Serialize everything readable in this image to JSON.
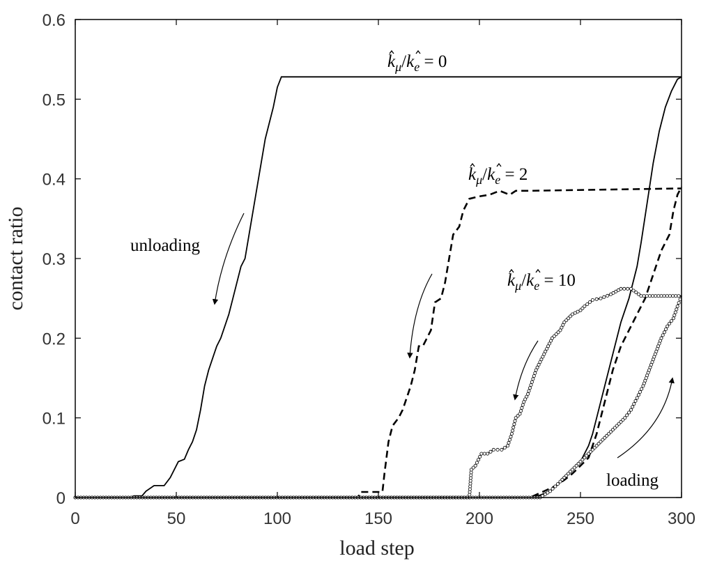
{
  "chart_data": {
    "type": "line",
    "xlabel": "load step",
    "ylabel": "contact ratio",
    "xlim": [
      0,
      300
    ],
    "ylim": [
      0,
      0.6
    ],
    "xticks": [
      0,
      50,
      100,
      150,
      200,
      250,
      300
    ],
    "yticks": [
      0,
      0.1,
      0.2,
      0.3,
      0.4,
      0.5,
      0.6
    ],
    "grid": false,
    "legend": "none",
    "series": [
      {
        "name": "k̂μ/k̂e = 0",
        "style": "solid",
        "color": "#000000",
        "label_parts": {
          "k1": "k",
          "s1": "μ",
          "slash": "/",
          "k2": "k",
          "s2": "e",
          "eq": " = ",
          "val": "0"
        },
        "unloading": [
          [
            0,
            0
          ],
          [
            27,
            0
          ],
          [
            29,
            0.002
          ],
          [
            33,
            0.002
          ],
          [
            35,
            0.008
          ],
          [
            39,
            0.015
          ],
          [
            44,
            0.015
          ],
          [
            47,
            0.025
          ],
          [
            51,
            0.045
          ],
          [
            54,
            0.048
          ],
          [
            56,
            0.06
          ],
          [
            58,
            0.07
          ],
          [
            60,
            0.085
          ],
          [
            62,
            0.11
          ],
          [
            64,
            0.14
          ],
          [
            66,
            0.16
          ],
          [
            68,
            0.175
          ],
          [
            70,
            0.19
          ],
          [
            72,
            0.2
          ],
          [
            74,
            0.215
          ],
          [
            76,
            0.23
          ],
          [
            78,
            0.25
          ],
          [
            80,
            0.27
          ],
          [
            82,
            0.29
          ],
          [
            84,
            0.3
          ],
          [
            86,
            0.33
          ],
          [
            88,
            0.36
          ],
          [
            90,
            0.39
          ],
          [
            92,
            0.42
          ],
          [
            94,
            0.45
          ],
          [
            96,
            0.47
          ],
          [
            98,
            0.49
          ],
          [
            100,
            0.515
          ],
          [
            102,
            0.528
          ],
          [
            300,
            0.528
          ]
        ],
        "loading": [
          [
            0,
            0
          ],
          [
            225,
            0
          ],
          [
            230,
            0.003
          ],
          [
            235,
            0.008
          ],
          [
            238,
            0.015
          ],
          [
            242,
            0.025
          ],
          [
            246,
            0.035
          ],
          [
            250,
            0.045
          ],
          [
            254,
            0.065
          ],
          [
            256,
            0.08
          ],
          [
            258,
            0.1
          ],
          [
            262,
            0.14
          ],
          [
            266,
            0.18
          ],
          [
            270,
            0.22
          ],
          [
            274,
            0.25
          ],
          [
            278,
            0.29
          ],
          [
            280,
            0.32
          ],
          [
            283,
            0.37
          ],
          [
            286,
            0.42
          ],
          [
            289,
            0.46
          ],
          [
            292,
            0.49
          ],
          [
            295,
            0.51
          ],
          [
            298,
            0.525
          ],
          [
            300,
            0.528
          ]
        ]
      },
      {
        "name": "k̂μ/k̂e = 2",
        "style": "dashed",
        "color": "#000000",
        "label_parts": {
          "k1": "k",
          "s1": "μ",
          "slash": "/",
          "k2": "k",
          "s2": "e",
          "eq": " = ",
          "val": "2"
        },
        "unloading": [
          [
            0,
            0
          ],
          [
            140,
            0
          ],
          [
            141,
            0.007
          ],
          [
            146,
            0.007
          ],
          [
            152,
            0.007
          ],
          [
            153,
            0.03
          ],
          [
            155,
            0.07
          ],
          [
            157,
            0.09
          ],
          [
            160,
            0.1
          ],
          [
            162,
            0.11
          ],
          [
            164,
            0.125
          ],
          [
            166,
            0.14
          ],
          [
            168,
            0.16
          ],
          [
            170,
            0.19
          ],
          [
            172,
            0.19
          ],
          [
            174,
            0.2
          ],
          [
            176,
            0.21
          ],
          [
            178,
            0.245
          ],
          [
            181,
            0.25
          ],
          [
            183,
            0.27
          ],
          [
            185,
            0.3
          ],
          [
            187,
            0.33
          ],
          [
            190,
            0.34
          ],
          [
            192,
            0.36
          ],
          [
            195,
            0.375
          ],
          [
            200,
            0.378
          ],
          [
            205,
            0.38
          ],
          [
            210,
            0.385
          ],
          [
            215,
            0.38
          ],
          [
            218,
            0.385
          ],
          [
            225,
            0.385
          ],
          [
            300,
            0.388
          ]
        ],
        "loading": [
          [
            0,
            0
          ],
          [
            225,
            0
          ],
          [
            232,
            0.008
          ],
          [
            238,
            0.015
          ],
          [
            242,
            0.022
          ],
          [
            246,
            0.03
          ],
          [
            250,
            0.04
          ],
          [
            254,
            0.05
          ],
          [
            258,
            0.08
          ],
          [
            262,
            0.12
          ],
          [
            266,
            0.16
          ],
          [
            270,
            0.19
          ],
          [
            274,
            0.21
          ],
          [
            278,
            0.23
          ],
          [
            282,
            0.25
          ],
          [
            286,
            0.28
          ],
          [
            290,
            0.31
          ],
          [
            294,
            0.33
          ],
          [
            296,
            0.36
          ],
          [
            298,
            0.38
          ],
          [
            300,
            0.39
          ]
        ]
      },
      {
        "name": "k̂μ/k̂e = 10",
        "style": "dash-dot-circles",
        "color": "#000000",
        "label_parts": {
          "k1": "k",
          "s1": "μ",
          "slash": "/",
          "k2": "k",
          "s2": "e",
          "eq": " = ",
          "val": "10"
        },
        "unloading": [
          [
            0,
            0
          ],
          [
            195,
            0
          ],
          [
            196,
            0.035
          ],
          [
            198,
            0.04
          ],
          [
            201,
            0.055
          ],
          [
            204,
            0.055
          ],
          [
            207,
            0.06
          ],
          [
            211,
            0.06
          ],
          [
            214,
            0.065
          ],
          [
            216,
            0.08
          ],
          [
            218,
            0.1
          ],
          [
            220,
            0.105
          ],
          [
            222,
            0.12
          ],
          [
            224,
            0.13
          ],
          [
            226,
            0.145
          ],
          [
            228,
            0.16
          ],
          [
            230,
            0.17
          ],
          [
            232,
            0.18
          ],
          [
            234,
            0.19
          ],
          [
            236,
            0.2
          ],
          [
            238,
            0.205
          ],
          [
            240,
            0.21
          ],
          [
            242,
            0.22
          ],
          [
            246,
            0.23
          ],
          [
            250,
            0.235
          ],
          [
            252,
            0.24
          ],
          [
            256,
            0.248
          ],
          [
            260,
            0.25
          ],
          [
            265,
            0.255
          ],
          [
            270,
            0.262
          ],
          [
            275,
            0.262
          ],
          [
            280,
            0.253
          ],
          [
            290,
            0.253
          ],
          [
            300,
            0.253
          ]
        ],
        "loading": [
          [
            0,
            0
          ],
          [
            230,
            0
          ],
          [
            235,
            0.008
          ],
          [
            240,
            0.02
          ],
          [
            244,
            0.03
          ],
          [
            248,
            0.04
          ],
          [
            252,
            0.05
          ],
          [
            256,
            0.06
          ],
          [
            260,
            0.07
          ],
          [
            264,
            0.08
          ],
          [
            268,
            0.09
          ],
          [
            272,
            0.1
          ],
          [
            275,
            0.11
          ],
          [
            278,
            0.125
          ],
          [
            281,
            0.14
          ],
          [
            284,
            0.16
          ],
          [
            287,
            0.18
          ],
          [
            290,
            0.2
          ],
          [
            293,
            0.215
          ],
          [
            296,
            0.225
          ],
          [
            298,
            0.24
          ],
          [
            300,
            0.253
          ]
        ]
      }
    ],
    "annotations": [
      {
        "text": "unloading"
      },
      {
        "text": "loading"
      }
    ]
  }
}
